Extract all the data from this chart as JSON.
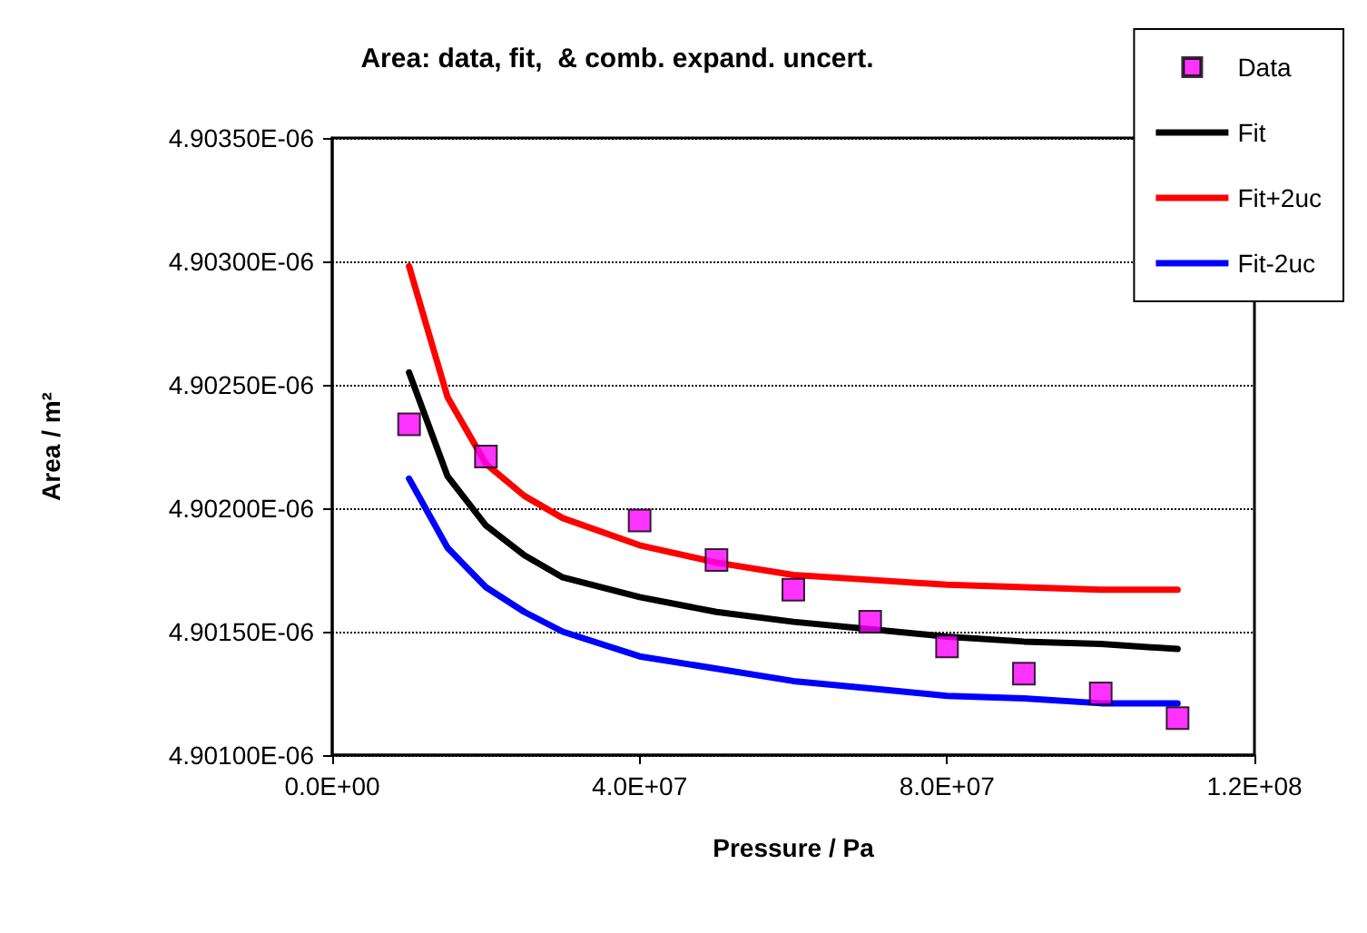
{
  "chart_data": {
    "type": "line",
    "title": "Area: data, fit,  & comb. expand. uncert.",
    "xlabel": "Pressure / Pa",
    "ylabel": "Area / m²",
    "x": [
      10000000,
      15000000,
      20000000,
      25000000,
      30000000,
      40000000,
      50000000,
      60000000,
      70000000,
      80000000,
      90000000,
      100000000,
      110000000
    ],
    "series": [
      {
        "name": "Data",
        "type": "scatter",
        "marker": "square",
        "color": "#ff00ff",
        "x": [
          10000000,
          20000000,
          40000000,
          50000000,
          60000000,
          70000000,
          80000000,
          90000000,
          100000000,
          110000000
        ],
        "values": [
          4.90234e-06,
          4.90221e-06,
          4.90195e-06,
          4.90179e-06,
          4.90167e-06,
          4.90154e-06,
          4.90144e-06,
          4.90133e-06,
          4.90125e-06,
          4.90115e-06
        ]
      },
      {
        "name": "Fit",
        "marker": "none",
        "color": "#000000",
        "values": [
          4.90255e-06,
          4.90213e-06,
          4.90193e-06,
          4.90181e-06,
          4.90172e-06,
          4.90164e-06,
          4.90158e-06,
          4.90154e-06,
          4.90151e-06,
          4.90148e-06,
          4.90146e-06,
          4.90145e-06,
          4.90143e-06
        ]
      },
      {
        "name": "Fit+2uc",
        "marker": "none",
        "color": "#ff0000",
        "values": [
          4.90298e-06,
          4.90245e-06,
          4.90218e-06,
          4.90205e-06,
          4.90196e-06,
          4.90185e-06,
          4.90178e-06,
          4.90173e-06,
          4.90171e-06,
          4.90169e-06,
          4.90168e-06,
          4.90167e-06,
          4.90167e-06
        ]
      },
      {
        "name": "Fit-2uc",
        "marker": "none",
        "color": "#0000ff",
        "values": [
          4.90212e-06,
          4.90184e-06,
          4.90168e-06,
          4.90158e-06,
          4.9015e-06,
          4.9014e-06,
          4.90135e-06,
          4.9013e-06,
          4.90127e-06,
          4.90124e-06,
          4.90123e-06,
          4.90121e-06,
          4.90121e-06
        ]
      }
    ],
    "xlim": [
      0,
      120000000
    ],
    "xticks": [
      {
        "value": 0,
        "label": "0.0E+00"
      },
      {
        "value": 40000000,
        "label": "4.0E+07"
      },
      {
        "value": 80000000,
        "label": "8.0E+07"
      },
      {
        "value": 120000000,
        "label": "1.2E+08"
      }
    ],
    "ylim": [
      4.901e-06,
      4.9035e-06
    ],
    "yticks": [
      {
        "value": 4.901e-06,
        "label": "4.90100E-06"
      },
      {
        "value": 4.9015e-06,
        "label": "4.90150E-06"
      },
      {
        "value": 4.902e-06,
        "label": "4.90200E-06"
      },
      {
        "value": 4.9025e-06,
        "label": "4.90250E-06"
      },
      {
        "value": 4.903e-06,
        "label": "4.90300E-06"
      },
      {
        "value": 4.9035e-06,
        "label": "4.90350E-06"
      }
    ],
    "grid": "y",
    "legend": "top right",
    "line_style": "solid"
  }
}
